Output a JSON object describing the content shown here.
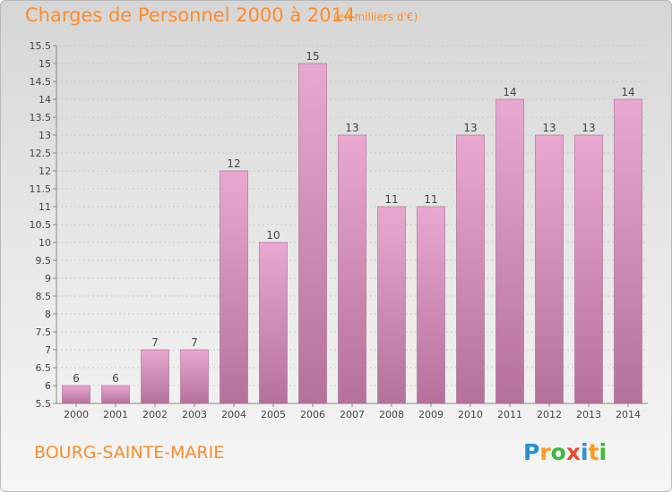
{
  "header": {
    "title": "Charges de Personnel 2000 à 2014",
    "subtitle": "(en milliers d'€)"
  },
  "footer": {
    "town": "BOURG-SAINTE-MARIE",
    "logo_letters": [
      "P",
      "r",
      "o",
      "x",
      "i",
      "t",
      "i"
    ],
    "logo_colors": [
      "#2a8fd8",
      "#ff9a1e",
      "#3cb83c",
      "#e84a2a",
      "#2a8fd8",
      "#ff9a1e",
      "#3cb83c"
    ]
  },
  "colors": {
    "bar_top": "#e9a8d0",
    "bar_bottom": "#b4729a",
    "bar_edge": "#a86890",
    "text": "#444444",
    "grid": "#c8c8c8"
  },
  "chart_data": {
    "type": "bar",
    "title": "Charges de Personnel 2000 à 2014",
    "subtitle": "(en milliers d'€)",
    "categories": [
      "2000",
      "2001",
      "2002",
      "2003",
      "2004",
      "2005",
      "2006",
      "2007",
      "2008",
      "2009",
      "2010",
      "2011",
      "2012",
      "2013",
      "2014"
    ],
    "values": [
      6,
      6,
      7,
      7,
      12,
      10,
      15,
      13,
      11,
      11,
      13,
      14,
      13,
      13,
      14
    ],
    "labels": [
      "6",
      "6",
      "7",
      "7",
      "12",
      "10",
      "15",
      "13",
      "11",
      "11",
      "13",
      "14",
      "13",
      "13",
      "14"
    ],
    "ylim": [
      5.5,
      15.5
    ],
    "yticks": [
      "5.5",
      "6",
      "6.5",
      "7",
      "7.5",
      "8",
      "8.5",
      "9",
      "9.5",
      "10",
      "10.5",
      "11",
      "11.5",
      "12",
      "12.5",
      "13",
      "13.5",
      "14",
      "14.5",
      "15",
      "15.5"
    ],
    "grid": true,
    "xlabel": "",
    "ylabel": ""
  }
}
